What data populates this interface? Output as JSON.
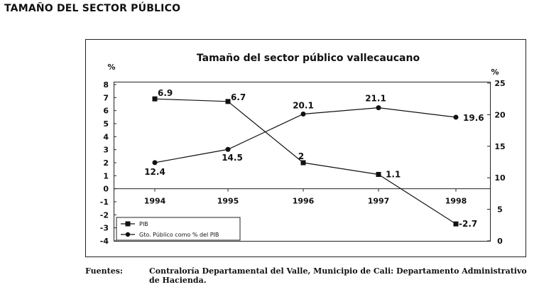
{
  "page": {
    "heading": "TAMAÑO DEL SECTOR PÚBLICO"
  },
  "footer": {
    "label": "Fuentes:",
    "text": "Contraloría Departamental del Valle, Municipio de Cali: Departamento Administrativo de Hacienda."
  },
  "chart_data": {
    "type": "line",
    "title": "Tamaño del sector público vallecaucano",
    "categories": [
      "1994",
      "1995",
      "1996",
      "1997",
      "1998"
    ],
    "left_axis": {
      "unit_label": "%",
      "ylim": [
        -4,
        8
      ],
      "ticks": [
        "8",
        "7",
        "6",
        "5",
        "4",
        "3",
        "2",
        "1",
        "0",
        "-1",
        "-2",
        "-3",
        "-4"
      ]
    },
    "right_axis": {
      "unit_label": "%",
      "ylim": [
        0,
        25
      ],
      "ticks": [
        "25",
        "20",
        "15",
        "10",
        "5",
        "0"
      ]
    },
    "grid": false,
    "legend_position": "bottom-left",
    "series": [
      {
        "name": "PIB",
        "axis": "left",
        "marker": "square",
        "values": [
          6.9,
          6.7,
          2,
          1.1,
          -2.7
        ],
        "labels": [
          "6.9",
          "6.7",
          "2",
          "1.1",
          "-2.7"
        ]
      },
      {
        "name": "Gto. Público como % del PIB",
        "axis": "right",
        "marker": "circle",
        "values": [
          12.4,
          14.5,
          20.1,
          21.1,
          19.6
        ],
        "labels": [
          "12.4",
          "14.5",
          "20.1",
          "21.1",
          "19.6"
        ]
      }
    ]
  }
}
